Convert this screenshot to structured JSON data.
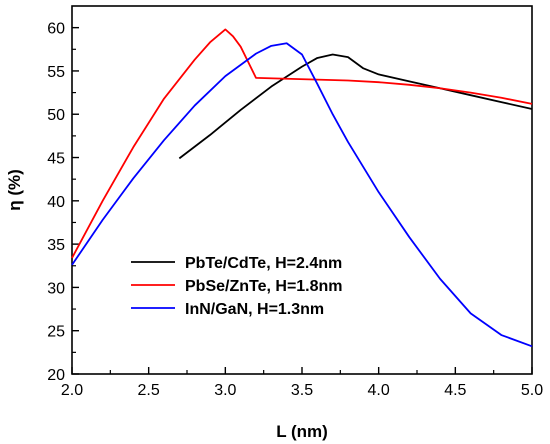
{
  "chart_data": {
    "type": "line",
    "title": "",
    "xlabel": "L (nm)",
    "ylabel": "η (%)",
    "xlim": [
      2.0,
      5.0
    ],
    "ylim": [
      20,
      62.5
    ],
    "x_ticks": [
      2.0,
      2.5,
      3.0,
      3.5,
      4.0,
      4.5,
      5.0
    ],
    "x_tick_labels": [
      "2.0",
      "2.5",
      "3.0",
      "3.5",
      "4.0",
      "4.5",
      "5.0"
    ],
    "y_ticks": [
      20,
      25,
      30,
      35,
      40,
      45,
      50,
      55,
      60
    ],
    "y_tick_labels": [
      "20",
      "25",
      "30",
      "35",
      "40",
      "45",
      "50",
      "55",
      "60"
    ],
    "grid": false,
    "legend_position": "lower-left",
    "series": [
      {
        "name": "PbTe/CdTe, H=2.4nm",
        "color": "#000000",
        "points": [
          [
            2.7,
            44.9
          ],
          [
            2.9,
            47.6
          ],
          [
            3.1,
            50.5
          ],
          [
            3.3,
            53.2
          ],
          [
            3.5,
            55.5
          ],
          [
            3.6,
            56.5
          ],
          [
            3.7,
            56.9
          ],
          [
            3.8,
            56.6
          ],
          [
            3.9,
            55.3
          ],
          [
            4.0,
            54.6
          ],
          [
            4.2,
            53.8
          ],
          [
            4.4,
            53.0
          ],
          [
            4.6,
            52.2
          ],
          [
            4.8,
            51.4
          ],
          [
            5.0,
            50.6
          ]
        ]
      },
      {
        "name": "PbSe/ZnTe, H=1.8nm",
        "color": "#ff0000",
        "points": [
          [
            2.0,
            33.4
          ],
          [
            2.2,
            40.0
          ],
          [
            2.4,
            46.2
          ],
          [
            2.6,
            51.8
          ],
          [
            2.8,
            56.3
          ],
          [
            2.9,
            58.3
          ],
          [
            3.0,
            59.8
          ],
          [
            3.05,
            59.0
          ],
          [
            3.1,
            57.8
          ],
          [
            3.15,
            56.0
          ],
          [
            3.2,
            54.2
          ],
          [
            3.4,
            54.1
          ],
          [
            3.6,
            54.0
          ],
          [
            3.8,
            53.9
          ],
          [
            4.0,
            53.7
          ],
          [
            4.2,
            53.4
          ],
          [
            4.4,
            53.0
          ],
          [
            4.6,
            52.5
          ],
          [
            4.8,
            51.9
          ],
          [
            5.0,
            51.2
          ]
        ]
      },
      {
        "name": "InN/GaN, H=1.3nm",
        "color": "#0000ff",
        "points": [
          [
            2.0,
            32.6
          ],
          [
            2.2,
            37.8
          ],
          [
            2.4,
            42.6
          ],
          [
            2.6,
            47.0
          ],
          [
            2.8,
            51.0
          ],
          [
            3.0,
            54.4
          ],
          [
            3.2,
            57.0
          ],
          [
            3.3,
            57.9
          ],
          [
            3.4,
            58.2
          ],
          [
            3.5,
            56.9
          ],
          [
            3.6,
            53.5
          ],
          [
            3.7,
            50.0
          ],
          [
            3.8,
            46.8
          ],
          [
            4.0,
            41.0
          ],
          [
            4.2,
            35.8
          ],
          [
            4.4,
            31.0
          ],
          [
            4.6,
            27.0
          ],
          [
            4.8,
            24.5
          ],
          [
            5.0,
            23.2
          ]
        ]
      }
    ]
  }
}
